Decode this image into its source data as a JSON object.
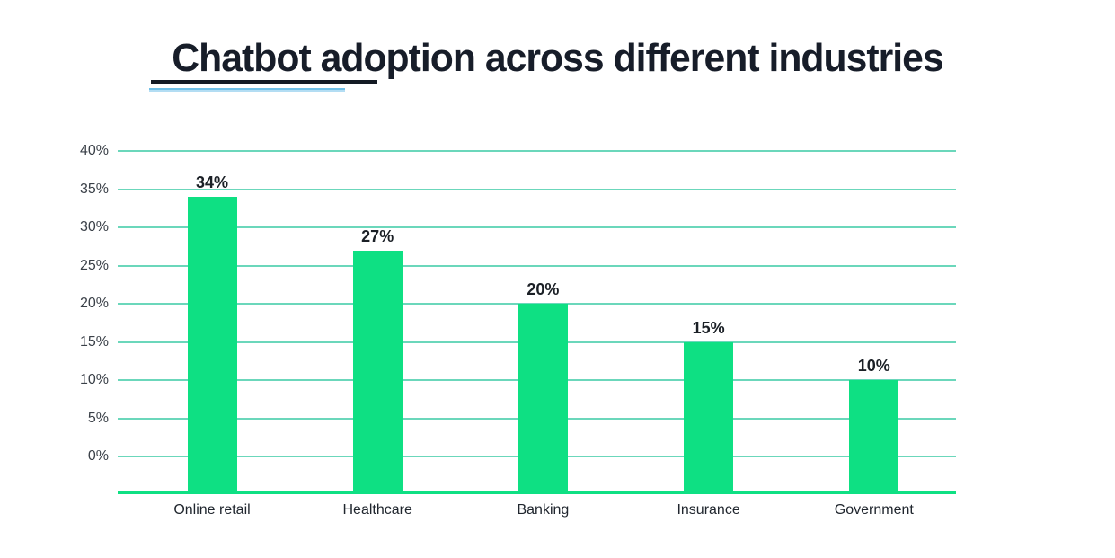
{
  "title": {
    "text": "Chatbot adoption across different industries",
    "color": "#171d29",
    "underline_color": "#131a24",
    "underline_accent_color": "#6fbfe7"
  },
  "chart_data": {
    "type": "bar",
    "title": "Chatbot adoption across different industries",
    "categories": [
      "Online retail",
      "Healthcare",
      "Banking",
      "Insurance",
      "Government"
    ],
    "values": [
      34,
      27,
      20,
      15,
      10
    ],
    "value_labels": [
      "34%",
      "27%",
      "20%",
      "15%",
      "10%"
    ],
    "y_tick_labels": [
      "40%",
      "35%",
      "30%",
      "25%",
      "20%",
      "15%",
      "10%",
      "5%",
      "0%"
    ],
    "ylim": [
      0,
      40
    ],
    "y_step": 5,
    "xlabel": "",
    "ylabel": "",
    "grid": "horizontal",
    "legend_position": "none",
    "bar_color": "#0ee083",
    "gridline_color": "#6bd7bb",
    "axis_line_color": "#0ee083",
    "value_label_color": "#1b2026",
    "tick_label_color": "#3a4048"
  }
}
